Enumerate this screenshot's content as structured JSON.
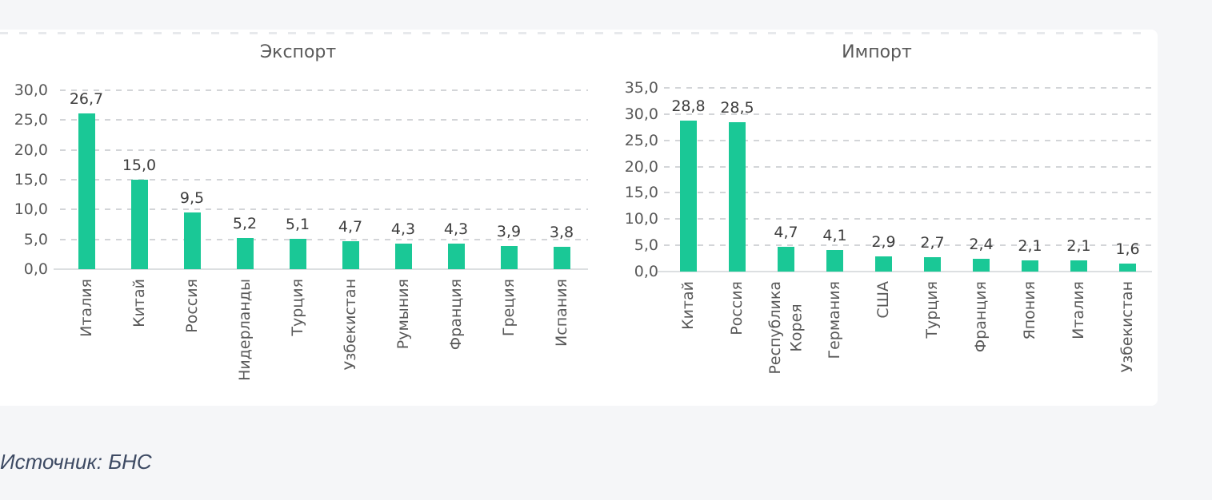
{
  "page": {
    "background": "#f5f6f8",
    "card_background": "#ffffff"
  },
  "colors": {
    "bar": "#1ac896",
    "grid": "#d3d5d8",
    "axis_line": "#dcdfe1",
    "tick_label": "#595959",
    "value_label": "#3d3d3d",
    "title": "#595959",
    "source_text": "#3d4a63"
  },
  "source_note": "Источник: БНС",
  "chart_data": [
    {
      "type": "bar",
      "title": "Экспорт",
      "categories": [
        "Италия",
        "Китай",
        "Россия",
        "Нидерланды",
        "Турция",
        "Узбекистан",
        "Румыния",
        "Франция",
        "Греция",
        "Испания"
      ],
      "values": [
        26.7,
        15.0,
        9.5,
        5.2,
        5.1,
        4.7,
        4.3,
        4.3,
        3.9,
        3.8
      ],
      "value_labels": [
        "26,7",
        "15,0",
        "9,5",
        "5,2",
        "5,1",
        "4,7",
        "4,3",
        "4,3",
        "3,9",
        "3,8"
      ],
      "xlabel": "",
      "ylabel": "",
      "ylim": [
        0,
        30
      ],
      "ytick_step": 5,
      "ytick_labels": [
        "30,0",
        "25,0",
        "20,0",
        "15,0",
        "10,0",
        "5,0",
        "0,0"
      ],
      "grid": true,
      "gridline_style": "dashed",
      "legend": "none",
      "category_label_rotation_deg": 90,
      "decimal_separator": ","
    },
    {
      "type": "bar",
      "title": "Импорт",
      "categories": [
        "Китай",
        "Россия",
        "Республика\nКорея",
        "Германия",
        "США",
        "Турция",
        "Франция",
        "Япония",
        "Италия",
        "Узбекистан"
      ],
      "values": [
        28.8,
        28.5,
        4.7,
        4.1,
        2.9,
        2.7,
        2.4,
        2.1,
        2.1,
        1.6
      ],
      "value_labels": [
        "28,8",
        "28,5",
        "4,7",
        "4,1",
        "2,9",
        "2,7",
        "2,4",
        "2,1",
        "2,1",
        "1,6"
      ],
      "xlabel": "",
      "ylabel": "",
      "ylim": [
        0,
        35
      ],
      "ytick_step": 5,
      "ytick_labels": [
        "35,0",
        "30,0",
        "25,0",
        "20,0",
        "15,0",
        "10,0",
        "5,0",
        "0,0"
      ],
      "grid": true,
      "gridline_style": "dashed",
      "legend": "none",
      "category_label_rotation_deg": 90,
      "decimal_separator": ","
    }
  ]
}
